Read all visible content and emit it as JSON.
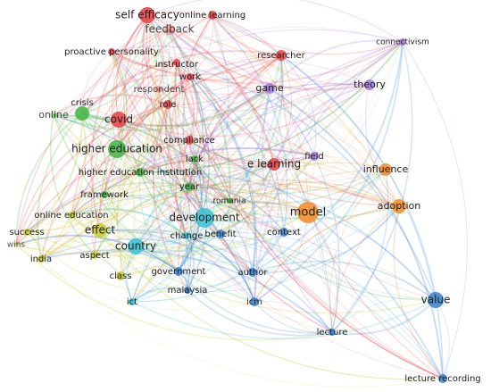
{
  "nodes": [
    {
      "label": "self efficacy"
    },
    {
      "label": "online learning"
    },
    {
      "label": "feedback"
    },
    {
      "label": "proactive personality"
    },
    {
      "label": "instructor"
    },
    {
      "label": "researcher"
    },
    {
      "label": "work"
    },
    {
      "label": "respondent"
    },
    {
      "label": "role"
    },
    {
      "label": "covid"
    },
    {
      "label": "compliance"
    },
    {
      "label": "e learning"
    },
    {
      "label": "crisis"
    },
    {
      "label": "online"
    },
    {
      "label": "higher education"
    },
    {
      "label": "lack"
    },
    {
      "label": "higher education institution"
    },
    {
      "label": "framework"
    },
    {
      "label": "year"
    },
    {
      "label": "romania"
    },
    {
      "label": "online education"
    },
    {
      "label": "effect"
    },
    {
      "label": "development"
    },
    {
      "label": "change"
    },
    {
      "label": "benefit"
    },
    {
      "label": "country"
    },
    {
      "label": "ict"
    },
    {
      "label": "government"
    },
    {
      "label": "context"
    },
    {
      "label": "author"
    },
    {
      "label": "malaysia"
    },
    {
      "label": "icm"
    },
    {
      "label": "value"
    },
    {
      "label": "lecture"
    },
    {
      "label": "lecture recording"
    },
    {
      "label": "success"
    },
    {
      "label": "wins"
    },
    {
      "label": "india"
    },
    {
      "label": "aspect"
    },
    {
      "label": "class"
    },
    {
      "label": "model"
    },
    {
      "label": "adoption"
    },
    {
      "label": "influence"
    },
    {
      "label": "game"
    },
    {
      "label": "theory"
    },
    {
      "label": "connectivism"
    },
    {
      "label": "field"
    }
  ]
}
